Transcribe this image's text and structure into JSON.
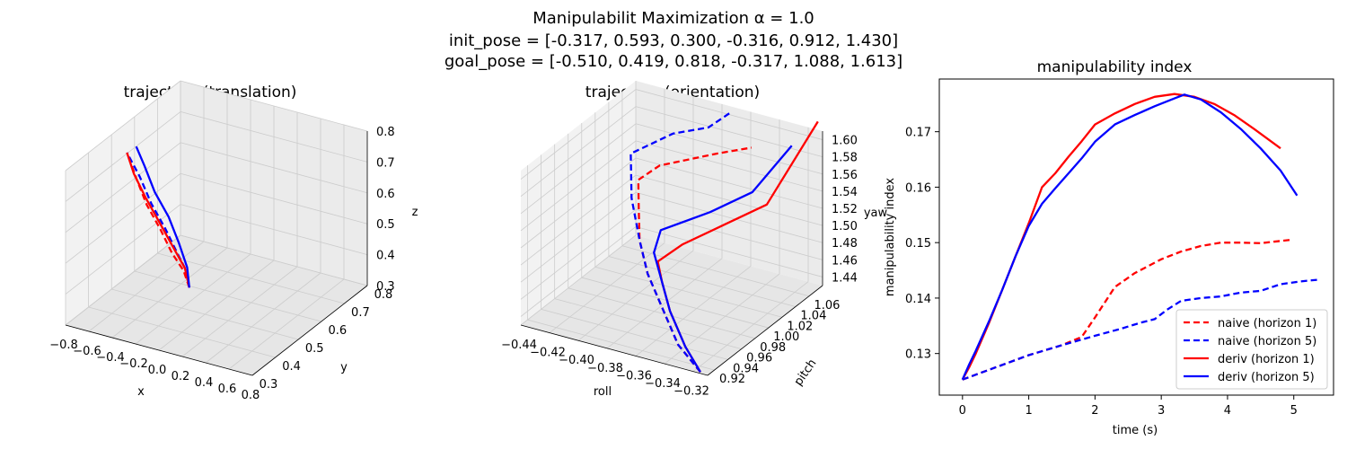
{
  "figure": {
    "title_line1": "Manipulabilit Maximization α = 1.0",
    "title_line2": "init_pose = [-0.317, 0.593, 0.300, -0.316, 0.912, 1.430]",
    "title_line3": "goal_pose = [-0.510, 0.419, 0.818, -0.317, 1.088, 1.613]"
  },
  "colors": {
    "red": "#ff0000",
    "blue": "#0000ff",
    "pane1": "#f2f2f2",
    "pane2": "#e6e6e6",
    "pane3": "#ebebeb",
    "grid": "#cccccc"
  },
  "chart_data": [
    {
      "type": "line",
      "projection": "3d",
      "title": "trajectory (translation)",
      "xlabel": "x",
      "ylabel": "y",
      "zlabel": "z",
      "xlim": [
        -0.8,
        0.8
      ],
      "ylim": [
        0.3,
        0.8
      ],
      "zlim": [
        0.3,
        0.8
      ],
      "xticks": [
        "−0.8",
        "−0.6",
        "−0.4",
        "−0.2",
        "0.0",
        "0.2",
        "0.4",
        "0.6",
        "0.8"
      ],
      "yticks": [
        "0.3",
        "0.4",
        "0.5",
        "0.6",
        "0.7",
        "0.8"
      ],
      "zticks": [
        "0.3",
        "0.4",
        "0.5",
        "0.6",
        "0.7",
        "0.8"
      ],
      "grid": true,
      "series": [
        {
          "color": "#ff0000",
          "style": "dashed",
          "points": [
            [
              -0.317,
              0.593,
              0.3
            ],
            [
              -0.34,
              0.58,
              0.36
            ],
            [
              -0.38,
              0.55,
              0.43
            ],
            [
              -0.42,
              0.52,
              0.52
            ],
            [
              -0.46,
              0.48,
              0.62
            ],
            [
              -0.49,
              0.45,
              0.72
            ],
            [
              -0.51,
              0.42,
              0.818
            ]
          ]
        },
        {
          "color": "#0000ff",
          "style": "dashed",
          "points": [
            [
              -0.317,
              0.593,
              0.3
            ],
            [
              -0.33,
              0.585,
              0.36
            ],
            [
              -0.36,
              0.56,
              0.43
            ],
            [
              -0.4,
              0.53,
              0.52
            ],
            [
              -0.44,
              0.49,
              0.62
            ],
            [
              -0.48,
              0.46,
              0.72
            ],
            [
              -0.51,
              0.42,
              0.818
            ]
          ]
        },
        {
          "color": "#ff0000",
          "style": "solid",
          "points": [
            [
              -0.317,
              0.593,
              0.3
            ],
            [
              -0.33,
              0.58,
              0.37
            ],
            [
              -0.37,
              0.55,
              0.45
            ],
            [
              -0.41,
              0.51,
              0.55
            ],
            [
              -0.45,
              0.47,
              0.65
            ],
            [
              -0.49,
              0.44,
              0.74
            ],
            [
              -0.51,
              0.42,
              0.818
            ]
          ]
        },
        {
          "color": "#0000ff",
          "style": "solid",
          "points": [
            [
              -0.317,
              0.593,
              0.3
            ],
            [
              -0.32,
              0.585,
              0.37
            ],
            [
              -0.34,
              0.56,
              0.46
            ],
            [
              -0.37,
              0.53,
              0.56
            ],
            [
              -0.41,
              0.49,
              0.66
            ],
            [
              -0.44,
              0.46,
              0.76
            ],
            [
              -0.47,
              0.44,
              0.83
            ]
          ]
        }
      ]
    },
    {
      "type": "line",
      "projection": "3d",
      "title": "trajectory (orientation)",
      "xlabel": "roll",
      "ylabel": "pitch",
      "zlabel": "yaw",
      "xlim": [
        -0.44,
        -0.31
      ],
      "ylim": [
        0.91,
        1.08
      ],
      "zlim": [
        1.43,
        1.61
      ],
      "xticks": [
        "−0.44",
        "−0.42",
        "−0.40",
        "−0.38",
        "−0.36",
        "−0.34",
        "−0.32"
      ],
      "yticks": [
        "0.92",
        "0.94",
        "0.96",
        "0.98",
        "1.00",
        "1.02",
        "1.04",
        "1.06"
      ],
      "zticks": [
        "1.44",
        "1.46",
        "1.48",
        "1.50",
        "1.52",
        "1.54",
        "1.56",
        "1.58",
        "1.60"
      ],
      "grid": true,
      "series": [
        {
          "color": "#ff0000",
          "style": "dashed",
          "points": [
            [
              -0.316,
              0.912,
              1.43
            ],
            [
              -0.34,
              0.93,
              1.44
            ],
            [
              -0.36,
              0.95,
              1.46
            ],
            [
              -0.38,
              0.97,
              1.48
            ],
            [
              -0.395,
              0.99,
              1.5
            ],
            [
              -0.405,
              1.01,
              1.52
            ],
            [
              -0.41,
              1.02,
              1.545
            ],
            [
              -0.4,
              1.03,
              1.56
            ],
            [
              -0.37,
              1.05,
              1.575
            ],
            [
              -0.35,
              1.06,
              1.585
            ]
          ]
        },
        {
          "color": "#0000ff",
          "style": "dashed",
          "points": [
            [
              -0.316,
              0.912,
              1.43
            ],
            [
              -0.34,
              0.93,
              1.44
            ],
            [
              -0.36,
              0.95,
              1.46
            ],
            [
              -0.38,
              0.97,
              1.48
            ],
            [
              -0.395,
              0.99,
              1.5
            ],
            [
              -0.41,
              1.01,
              1.53
            ],
            [
              -0.42,
              1.03,
              1.565
            ],
            [
              -0.4,
              1.05,
              1.585
            ],
            [
              -0.38,
              1.06,
              1.595
            ],
            [
              -0.37,
              1.07,
              1.61
            ]
          ]
        },
        {
          "color": "#ff0000",
          "style": "solid",
          "points": [
            [
              -0.316,
              0.912,
              1.43
            ],
            [
              -0.335,
              0.93,
              1.44
            ],
            [
              -0.355,
              0.95,
              1.46
            ],
            [
              -0.37,
              0.97,
              1.475
            ],
            [
              -0.38,
              0.985,
              1.485
            ],
            [
              -0.37,
              1.0,
              1.5
            ],
            [
              -0.35,
              1.02,
              1.52
            ],
            [
              -0.33,
              1.04,
              1.54
            ],
            [
              -0.317,
              1.088,
              1.613
            ]
          ]
        },
        {
          "color": "#0000ff",
          "style": "solid",
          "points": [
            [
              -0.316,
              0.912,
              1.43
            ],
            [
              -0.335,
              0.93,
              1.44
            ],
            [
              -0.355,
              0.95,
              1.46
            ],
            [
              -0.37,
              0.97,
              1.475
            ],
            [
              -0.385,
              0.99,
              1.49
            ],
            [
              -0.385,
              1.0,
              1.51
            ],
            [
              -0.36,
              1.02,
              1.53
            ],
            [
              -0.34,
              1.04,
              1.55
            ],
            [
              -0.322,
              1.06,
              1.6
            ]
          ]
        }
      ]
    },
    {
      "type": "line",
      "title": "manipulability index",
      "xlabel": "time (s)",
      "ylabel": "manipulability index",
      "xlim": [
        -0.35,
        5.6
      ],
      "ylim": [
        0.1225,
        0.1795
      ],
      "xticks": [
        0,
        1,
        2,
        3,
        4,
        5
      ],
      "yticks": [
        0.13,
        0.14,
        0.15,
        0.16,
        0.17
      ],
      "legend_position": "lower-right",
      "series": [
        {
          "name": "naive (horizon 1)",
          "color": "#ff0000",
          "style": "dashed",
          "x": [
            0,
            0.5,
            1,
            1.5,
            1.8,
            2,
            2.3,
            2.6,
            3,
            3.3,
            3.6,
            3.9,
            4.2,
            4.5,
            4.95
          ],
          "y": [
            0.1253,
            0.1275,
            0.1297,
            0.1315,
            0.133,
            0.1365,
            0.142,
            0.1445,
            0.147,
            0.1484,
            0.1494,
            0.15,
            0.15,
            0.1499,
            0.1505
          ]
        },
        {
          "name": "naive (horizon 5)",
          "color": "#0000ff",
          "style": "dashed",
          "x": [
            0,
            0.5,
            1,
            1.5,
            2,
            2.4,
            2.7,
            2.9,
            3.1,
            3.3,
            3.6,
            3.9,
            4.2,
            4.5,
            4.8,
            5.1,
            5.35
          ],
          "y": [
            0.1253,
            0.1275,
            0.1297,
            0.1315,
            0.1332,
            0.1345,
            0.1356,
            0.1362,
            0.138,
            0.1395,
            0.14,
            0.1403,
            0.141,
            0.1413,
            0.1425,
            0.143,
            0.1433
          ]
        },
        {
          "name": "deriv (horizon 1)",
          "color": "#ff0000",
          "style": "solid",
          "x": [
            0,
            0.1,
            0.2,
            0.4,
            0.6,
            0.8,
            1,
            1.2,
            1.4,
            1.6,
            1.8,
            2,
            2.3,
            2.6,
            2.9,
            3.2,
            3.5,
            3.8,
            4.1,
            4.4,
            4.8
          ],
          "y": [
            0.1253,
            0.1275,
            0.13,
            0.1355,
            0.1415,
            0.1475,
            0.1535,
            0.16,
            0.1625,
            0.1655,
            0.1683,
            0.1713,
            0.1733,
            0.175,
            0.1763,
            0.1768,
            0.1763,
            0.175,
            0.173,
            0.1705,
            0.167
          ]
        },
        {
          "name": "deriv (horizon 5)",
          "color": "#0000ff",
          "style": "solid",
          "x": [
            0,
            0.1,
            0.2,
            0.4,
            0.6,
            0.8,
            1,
            1.2,
            1.4,
            1.6,
            1.8,
            2,
            2.3,
            2.6,
            2.9,
            3.2,
            3.35,
            3.6,
            3.9,
            4.2,
            4.5,
            4.8,
            5.05
          ],
          "y": [
            0.1253,
            0.128,
            0.1305,
            0.1358,
            0.1415,
            0.1475,
            0.153,
            0.157,
            0.1598,
            0.1625,
            0.1652,
            0.1682,
            0.1713,
            0.173,
            0.1746,
            0.176,
            0.1767,
            0.1758,
            0.1735,
            0.1705,
            0.167,
            0.163,
            0.1585
          ]
        }
      ]
    }
  ]
}
